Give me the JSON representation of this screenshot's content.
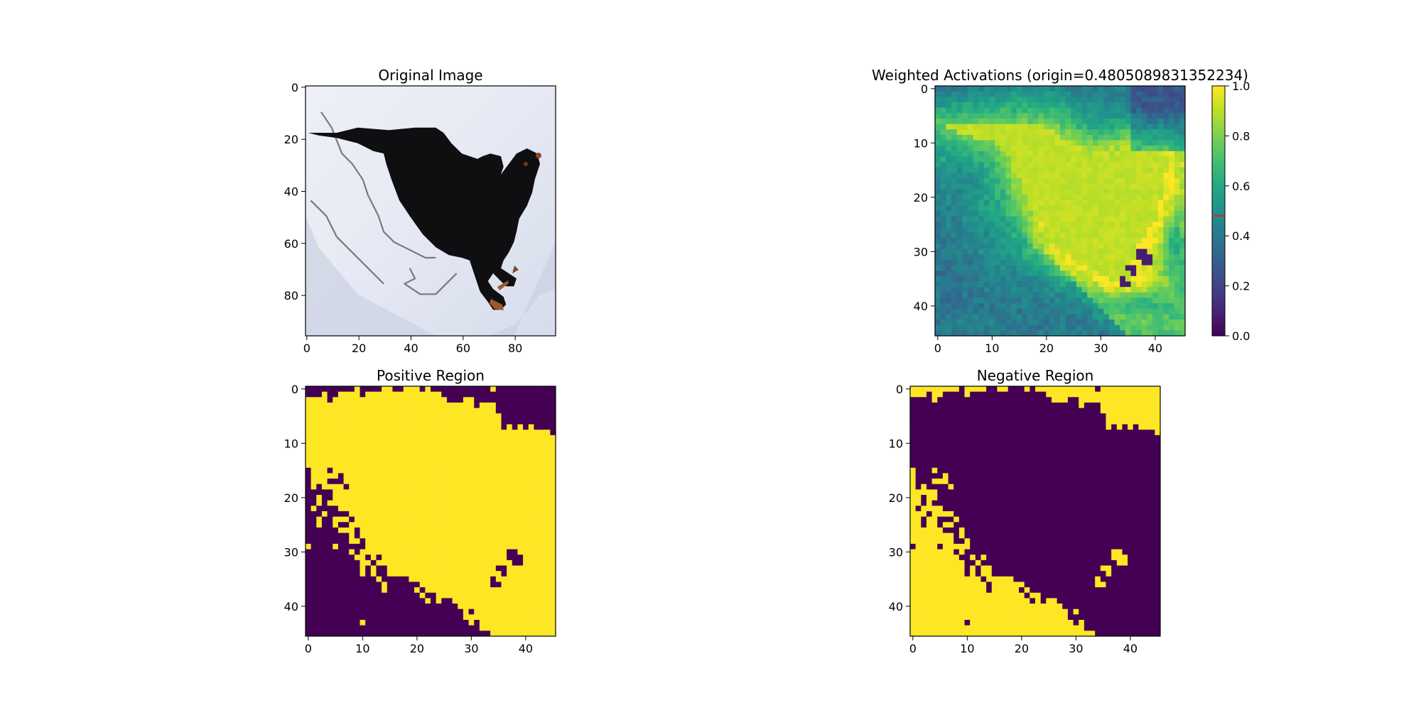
{
  "chart_data": [
    {
      "type": "image",
      "title": "Original Image",
      "xlim": [
        0,
        96
      ],
      "ylim": [
        96,
        0
      ],
      "x_ticks": [
        0,
        20,
        40,
        60,
        80
      ],
      "y_ticks": [
        0,
        20,
        40,
        60,
        80
      ],
      "x_tick_labels": [
        "0",
        "20",
        "40",
        "60",
        "80"
      ],
      "y_tick_labels": [
        "0",
        "20",
        "40",
        "60",
        "80"
      ],
      "content": "photo: black dog on snow, viewed from above",
      "dog_polygon": [
        [
          1,
          18
        ],
        [
          6,
          18
        ],
        [
          12,
          18
        ],
        [
          20,
          16
        ],
        [
          32,
          17
        ],
        [
          42,
          16
        ],
        [
          50,
          16
        ],
        [
          53,
          18
        ],
        [
          56,
          22
        ],
        [
          60,
          26
        ],
        [
          66,
          28
        ],
        [
          68,
          27
        ],
        [
          71,
          26
        ],
        [
          75,
          27
        ],
        [
          76,
          31
        ],
        [
          75,
          34
        ],
        [
          78,
          30
        ],
        [
          81,
          26
        ],
        [
          85,
          24
        ],
        [
          89,
          26
        ],
        [
          90,
          30
        ],
        [
          88,
          36
        ],
        [
          87,
          41
        ],
        [
          85,
          46
        ],
        [
          82,
          51
        ],
        [
          81,
          56
        ],
        [
          80,
          60
        ],
        [
          78,
          64
        ],
        [
          76,
          67
        ],
        [
          75,
          70
        ],
        [
          78,
          72
        ],
        [
          81,
          74
        ],
        [
          80,
          77
        ],
        [
          77,
          77
        ],
        [
          75,
          75
        ],
        [
          72,
          72
        ],
        [
          70,
          75
        ],
        [
          72,
          78
        ],
        [
          76,
          81
        ],
        [
          77,
          84
        ],
        [
          75,
          86
        ],
        [
          72,
          86
        ],
        [
          70,
          83
        ],
        [
          67,
          79
        ],
        [
          65,
          73
        ],
        [
          63,
          67
        ],
        [
          60,
          66
        ],
        [
          55,
          65
        ],
        [
          50,
          62
        ],
        [
          45,
          57
        ],
        [
          40,
          50
        ],
        [
          36,
          44
        ],
        [
          33,
          36
        ],
        [
          31,
          30
        ],
        [
          30,
          26
        ],
        [
          26,
          25
        ],
        [
          20,
          22
        ],
        [
          12,
          20
        ],
        [
          5,
          19
        ]
      ],
      "dirt_trail": [
        [
          [
            6,
            10
          ],
          [
            10,
            16
          ],
          [
            14,
            26
          ],
          [
            18,
            30
          ],
          [
            22,
            36
          ],
          [
            24,
            42
          ],
          [
            28,
            50
          ],
          [
            30,
            56
          ],
          [
            34,
            60
          ],
          [
            38,
            62
          ],
          [
            42,
            64
          ],
          [
            46,
            66
          ],
          [
            50,
            66
          ]
        ],
        [
          [
            2,
            44
          ],
          [
            8,
            50
          ],
          [
            12,
            58
          ],
          [
            18,
            64
          ],
          [
            24,
            70
          ],
          [
            30,
            76
          ]
        ],
        [
          [
            40,
            70
          ],
          [
            42,
            74
          ],
          [
            38,
            76
          ],
          [
            44,
            80
          ],
          [
            50,
            80
          ],
          [
            54,
            76
          ],
          [
            58,
            72
          ]
        ]
      ],
      "snow_shadow": [
        [
          0,
          50
        ],
        [
          0,
          96
        ],
        [
          70,
          96
        ],
        [
          80,
          92
        ],
        [
          86,
          86
        ],
        [
          90,
          80
        ],
        [
          96,
          78
        ],
        [
          96,
          96
        ],
        [
          96,
          60
        ],
        [
          80,
          96
        ],
        [
          50,
          96
        ],
        [
          20,
          80
        ],
        [
          5,
          62
        ]
      ]
    },
    {
      "type": "heatmap",
      "title": "Weighted Activations (origin=0.4805089831352234)",
      "grid_size": [
        46,
        46
      ],
      "xlim": [
        0,
        46
      ],
      "ylim": [
        46,
        0
      ],
      "x_ticks": [
        0,
        10,
        20,
        30,
        40
      ],
      "y_ticks": [
        0,
        10,
        20,
        30,
        40
      ],
      "x_tick_labels": [
        "0",
        "10",
        "20",
        "30",
        "40"
      ],
      "y_tick_labels": [
        "0",
        "10",
        "20",
        "30",
        "40"
      ],
      "colormap": "viridis",
      "value_range": [
        0,
        1
      ],
      "colorbar": {
        "ticks": [
          0.0,
          0.2,
          0.4,
          0.6,
          0.8,
          1.0
        ],
        "tick_labels": [
          "0.0",
          "0.2",
          "0.4",
          "0.6",
          "0.8",
          "1.0"
        ],
        "marker_value": 0.4805089831352234,
        "marker_color": "#d62728"
      },
      "dog_polygon": [
        [
          1,
          7
        ],
        [
          4,
          7
        ],
        [
          16,
          6.5
        ],
        [
          20,
          7.5
        ],
        [
          24,
          10
        ],
        [
          28,
          13
        ],
        [
          34,
          13
        ],
        [
          37,
          12
        ],
        [
          42,
          12
        ],
        [
          43,
          14
        ],
        [
          42,
          19
        ],
        [
          41,
          24
        ],
        [
          39,
          27
        ],
        [
          37,
          30
        ],
        [
          36,
          34
        ],
        [
          37,
          37
        ],
        [
          35,
          37
        ],
        [
          31,
          35
        ],
        [
          27,
          33
        ],
        [
          24,
          31
        ],
        [
          21,
          28
        ],
        [
          19,
          24
        ],
        [
          17,
          20
        ],
        [
          15,
          16
        ],
        [
          13,
          12
        ],
        [
          10,
          10
        ],
        [
          5,
          9
        ]
      ],
      "dark_spots": [
        [
          34.5,
          36
        ],
        [
          35.5,
          36.5
        ],
        [
          36,
          33.5
        ],
        [
          36.5,
          34.5
        ],
        [
          38,
          31
        ],
        [
          39,
          32
        ],
        [
          37.5,
          31.5
        ]
      ],
      "ambient_blobs": [
        [
          12,
          30,
          5,
          6,
          0.6
        ],
        [
          8,
          22,
          4,
          5,
          0.65
        ],
        [
          30,
          6,
          5,
          3,
          0.55
        ],
        [
          40,
          4,
          5,
          3,
          0.25
        ],
        [
          4,
          38,
          4,
          4,
          0.35
        ],
        [
          2,
          18,
          3,
          4,
          0.55
        ],
        [
          44,
          28,
          2,
          5,
          0.4
        ],
        [
          24,
          40,
          6,
          4,
          0.42
        ],
        [
          38,
          40,
          6,
          3,
          0.35
        ],
        [
          18,
          4,
          8,
          3,
          0.6
        ]
      ]
    },
    {
      "type": "heatmap",
      "title": "Positive Region",
      "grid_size": [
        46,
        46
      ],
      "xlim": [
        0,
        46
      ],
      "ylim": [
        46,
        0
      ],
      "x_ticks": [
        0,
        10,
        20,
        30,
        40
      ],
      "y_ticks": [
        0,
        10,
        20,
        30,
        40
      ],
      "x_tick_labels": [
        "0",
        "10",
        "20",
        "30",
        "40"
      ],
      "y_tick_labels": [
        "0",
        "10",
        "20",
        "30",
        "40"
      ],
      "colormap": "viridis (binary)",
      "value_range": [
        0,
        1
      ],
      "derivation": "activation >= origin"
    },
    {
      "type": "heatmap",
      "title": "Negative Region",
      "grid_size": [
        46,
        46
      ],
      "xlim": [
        0,
        46
      ],
      "ylim": [
        46,
        0
      ],
      "x_ticks": [
        0,
        10,
        20,
        30,
        40
      ],
      "y_ticks": [
        0,
        10,
        20,
        30,
        40
      ],
      "x_tick_labels": [
        "0",
        "10",
        "20",
        "30",
        "40"
      ],
      "y_tick_labels": [
        "0",
        "10",
        "20",
        "30",
        "40"
      ],
      "colormap": "viridis (binary)",
      "value_range": [
        0,
        1
      ],
      "derivation": "activation < origin"
    }
  ]
}
